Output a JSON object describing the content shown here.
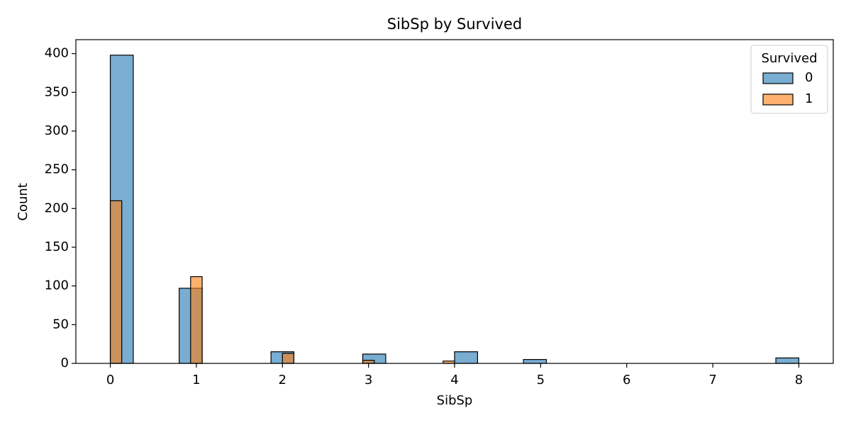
{
  "chart_data": {
    "type": "histogram",
    "title": "SibSp by Survived",
    "xlabel": "SibSp",
    "ylabel": "Count",
    "xlim": [
      -0.4,
      8.4
    ],
    "ylim": [
      0,
      418
    ],
    "xticks": [
      0,
      1,
      2,
      3,
      4,
      5,
      6,
      7,
      8
    ],
    "yticks": [
      0,
      50,
      100,
      150,
      200,
      250,
      300,
      350,
      400
    ],
    "legend": {
      "title": "Survived",
      "loc": "upper right"
    },
    "opacity": 0.6,
    "series": [
      {
        "name": "0",
        "color": "#1f77b4",
        "bins": [
          0,
          0.267,
          0.533,
          0.8,
          1.067,
          1.333,
          1.6,
          1.867,
          2.133,
          2.4,
          2.667,
          2.933,
          3.2,
          3.467,
          3.733,
          4,
          4.267,
          4.533,
          4.8,
          5.067,
          5.333,
          5.6,
          5.867,
          6.133,
          6.4,
          6.667,
          6.933,
          7.2,
          7.467,
          7.733,
          8
        ],
        "values": [
          398,
          0,
          0,
          97,
          0,
          0,
          0,
          15,
          0,
          0,
          0,
          12,
          0,
          0,
          0,
          15,
          0,
          0,
          5,
          0,
          0,
          0,
          0,
          0,
          0,
          0,
          0,
          0,
          0,
          7
        ]
      },
      {
        "name": "1",
        "color": "#ff7f0e",
        "bins": [
          0,
          0.133,
          0.267,
          0.4,
          0.533,
          0.667,
          0.8,
          0.933,
          1.067,
          1.2,
          1.333,
          1.467,
          1.6,
          1.733,
          1.867,
          2,
          2.133,
          2.267,
          2.4,
          2.533,
          2.667,
          2.8,
          2.933,
          3.067,
          3.2,
          3.333,
          3.467,
          3.6,
          3.733,
          3.867,
          4
        ],
        "values": [
          210,
          0,
          0,
          0,
          0,
          0,
          0,
          112,
          0,
          0,
          0,
          0,
          0,
          0,
          0,
          13,
          0,
          0,
          0,
          0,
          0,
          0,
          4,
          0,
          0,
          0,
          0,
          0,
          0,
          3
        ]
      }
    ]
  }
}
